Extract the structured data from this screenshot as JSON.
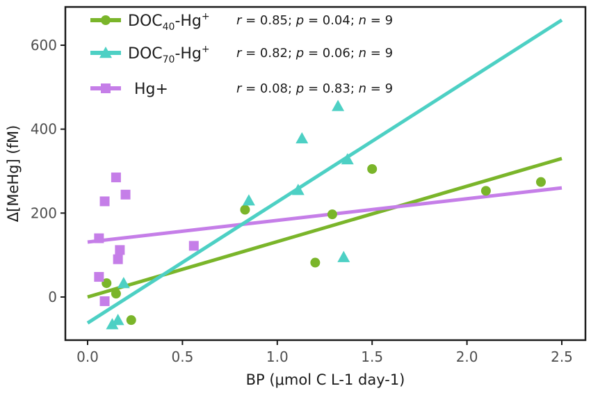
{
  "chart_data": {
    "type": "scatter",
    "title": "",
    "xlabel": "BP (μmol C L-1 day-1)",
    "ylabel": "Δ[MeHg] (fM)",
    "xlim": [
      -0.12,
      2.58
    ],
    "ylim": [
      -105,
      690
    ],
    "xticks": [
      0.0,
      0.5,
      1.0,
      1.5,
      2.0,
      2.5
    ],
    "xtick_labels": [
      "0.0",
      "0.5",
      "1.0",
      "1.5",
      "2.0",
      "2.5"
    ],
    "yticks": [
      0,
      200,
      400,
      600
    ],
    "ytick_labels": [
      "0",
      "200",
      "400",
      "600"
    ],
    "grid": false,
    "legend_position": "top-left",
    "series": [
      {
        "name": "DOC40-Hg+",
        "legend": {
          "base": "DOC",
          "sub": "40",
          "mid": "-Hg",
          "sup": "+"
        },
        "stats": {
          "r": "0.85",
          "p": "0.04",
          "n": "9"
        },
        "color": "#7ab52a",
        "marker": "circle",
        "x": [
          0.1,
          0.15,
          0.23,
          0.83,
          1.2,
          1.29,
          1.5,
          2.1,
          2.39
        ],
        "y": [
          33,
          8,
          -55,
          208,
          82,
          197,
          305,
          253,
          274
        ],
        "fit": {
          "x": [
            0.0,
            2.5
          ],
          "y": [
            0,
            330
          ]
        }
      },
      {
        "name": "DOC70-Hg+",
        "legend": {
          "base": "DOC",
          "sub": "70",
          "mid": "-Hg",
          "sup": "+"
        },
        "stats": {
          "r": "0.82",
          "p": "0.06",
          "n": "9"
        },
        "color": "#4dd0c4",
        "marker": "triangle",
        "x": [
          0.13,
          0.16,
          0.19,
          0.85,
          1.11,
          1.13,
          1.32,
          1.35,
          1.37
        ],
        "y": [
          -65,
          -55,
          33,
          230,
          255,
          378,
          455,
          95,
          328
        ],
        "fit": {
          "x": [
            0.0,
            2.5
          ],
          "y": [
            -62,
            660
          ]
        }
      },
      {
        "name": "Hg+",
        "legend": {
          "base": "Hg+",
          "sub": "",
          "mid": "",
          "sup": ""
        },
        "stats": {
          "r": "0.08",
          "p": "0.83",
          "n": "9"
        },
        "color": "#c57ee8",
        "marker": "square",
        "x": [
          0.06,
          0.06,
          0.09,
          0.09,
          0.15,
          0.16,
          0.17,
          0.2,
          0.56
        ],
        "y": [
          140,
          48,
          -10,
          228,
          285,
          90,
          112,
          244,
          122
        ],
        "fit": {
          "x": [
            0.0,
            2.5
          ],
          "y": [
            131,
            260
          ]
        }
      }
    ]
  }
}
